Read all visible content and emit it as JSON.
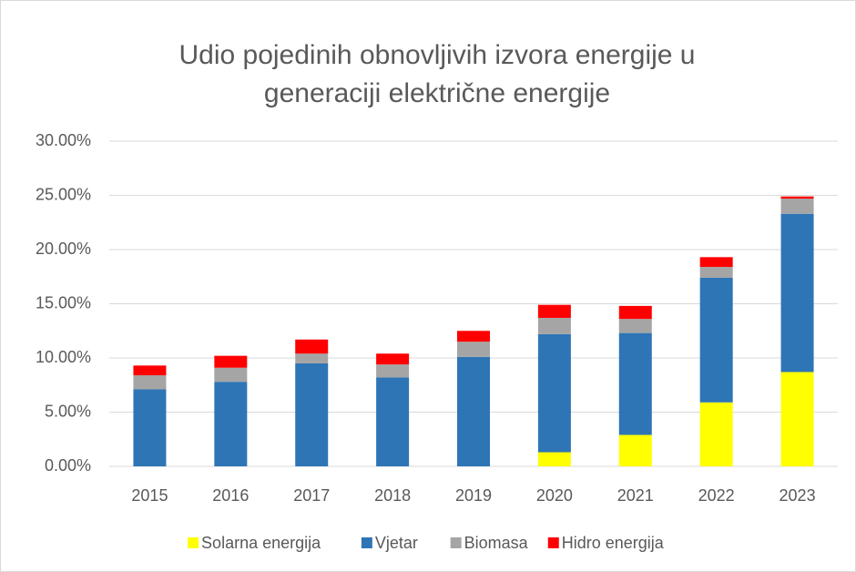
{
  "chart_data": {
    "type": "stacked_bar",
    "title": [
      "Udio pojedinih obnovljivih izvora energije u",
      "generaciji električne energije"
    ],
    "categories": [
      "2015",
      "2016",
      "2017",
      "2018",
      "2019",
      "2020",
      "2021",
      "2022",
      "2023"
    ],
    "series": [
      {
        "name": "Solarna energija",
        "color": "#ffff00",
        "values": [
          0,
          0,
          0,
          0,
          0,
          1.3,
          2.9,
          5.9,
          8.7
        ]
      },
      {
        "name": "Vjetar",
        "color": "#2e75b6",
        "values": [
          7.1,
          7.8,
          9.5,
          8.2,
          10.1,
          10.9,
          9.4,
          11.5,
          14.6
        ]
      },
      {
        "name": "Biomasa",
        "color": "#a5a5a5",
        "values": [
          1.3,
          1.3,
          0.9,
          1.2,
          1.4,
          1.5,
          1.3,
          1.0,
          1.4
        ]
      },
      {
        "name": "Hidro energija",
        "color": "#ff0000",
        "values": [
          0.9,
          1.1,
          1.3,
          1.0,
          1.0,
          1.2,
          1.2,
          0.9,
          0.2
        ]
      }
    ],
    "ylim": [
      0,
      30
    ],
    "yticks": [
      {
        "value": 0,
        "label": "0.00%"
      },
      {
        "value": 5,
        "label": "5.00%"
      },
      {
        "value": 10,
        "label": "10.00%"
      },
      {
        "value": 15,
        "label": "15.00%"
      },
      {
        "value": 20,
        "label": "20.00%"
      },
      {
        "value": 25,
        "label": "25.00%"
      },
      {
        "value": 30,
        "label": "30.00%"
      }
    ],
    "grid": true,
    "legend": "bottom"
  }
}
